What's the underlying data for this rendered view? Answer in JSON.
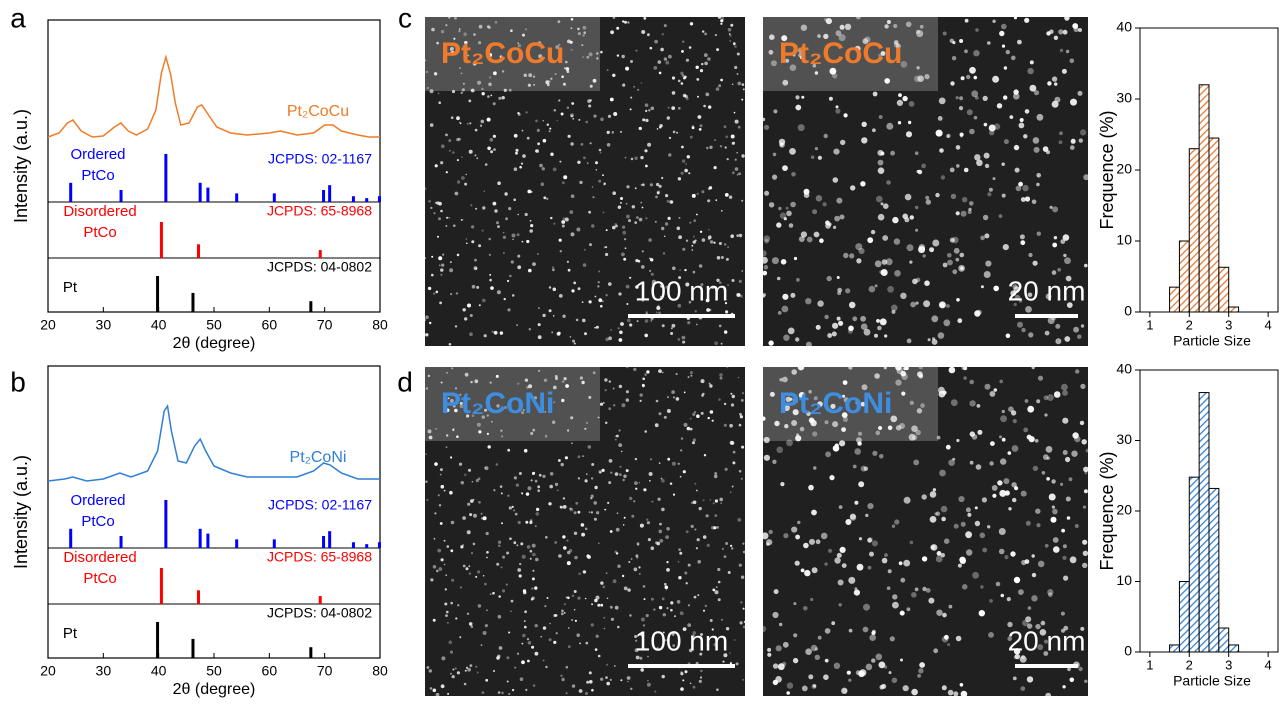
{
  "panel_labels": [
    "a",
    "b",
    "c",
    "d"
  ],
  "chart_data": [
    {
      "type": "line",
      "xlabel": "2θ (degree)",
      "ylabel": "Intensity (a.u.)",
      "xlim": [
        20,
        80
      ],
      "xticks": [
        20,
        30,
        40,
        50,
        60,
        70,
        80
      ],
      "x": [
        20,
        22,
        23.5,
        24.5,
        26,
        28,
        30,
        32,
        33.2,
        34.5,
        36,
        38,
        39.5,
        40.5,
        41.3,
        42.2,
        43,
        44,
        45.5,
        47,
        47.8,
        49,
        50.5,
        53,
        56,
        60,
        62,
        65,
        68,
        70,
        71.5,
        73,
        76,
        78,
        80
      ],
      "series": [
        {
          "name": "Pt₂CoCu",
          "color": "#f07c28",
          "values": [
            8,
            12,
            22,
            25,
            14,
            8,
            9,
            18,
            22,
            14,
            10,
            16,
            35,
            72,
            88,
            70,
            42,
            20,
            22,
            38,
            40,
            30,
            18,
            12,
            10,
            12,
            14,
            10,
            12,
            20,
            20,
            14,
            10,
            8,
            8
          ]
        }
      ],
      "references": [
        {
          "name": [
            "Ordered",
            "PtCo"
          ],
          "card": "JCPDS: 02-1167",
          "color": "#0000ff",
          "x": [
            24.1,
            33.2,
            41.3,
            47.5,
            48.9,
            54.1,
            60.9,
            69.8,
            70.9,
            75.2,
            77.6,
            79.9
          ],
          "values": [
            40,
            25,
            100,
            40,
            30,
            18,
            18,
            25,
            35,
            12,
            8,
            12
          ]
        },
        {
          "name": [
            "Disordered",
            "PtCo"
          ],
          "card": "JCPDS: 65-8968",
          "color": "#ff0000",
          "x": [
            40.5,
            47.2,
            69.2
          ],
          "values": [
            100,
            38,
            22
          ]
        },
        {
          "name": [
            "Pt"
          ],
          "card": "JCPDS: 04-0802",
          "color": "#000000",
          "x": [
            39.8,
            46.2,
            67.5
          ],
          "values": [
            100,
            53,
            30
          ]
        }
      ]
    },
    {
      "type": "line",
      "xlabel": "2θ (degree)",
      "ylabel": "Intensity (a.u.)",
      "xlim": [
        20,
        80
      ],
      "xticks": [
        20,
        30,
        40,
        50,
        60,
        70,
        80
      ],
      "x": [
        20,
        23,
        24.5,
        27,
        30,
        33,
        35,
        38,
        39.8,
        41,
        41.6,
        42.3,
        43.5,
        45,
        46.5,
        47.5,
        48.5,
        50,
        53,
        56,
        60,
        65,
        68,
        69.8,
        71,
        73,
        76,
        80
      ],
      "series": [
        {
          "name": "Pt₂CoNi",
          "color": "#2f7fd6",
          "values": [
            10,
            12,
            14,
            10,
            12,
            18,
            14,
            20,
            40,
            80,
            85,
            60,
            30,
            28,
            45,
            52,
            40,
            25,
            18,
            14,
            14,
            14,
            20,
            28,
            26,
            18,
            12,
            12
          ]
        }
      ],
      "references": [
        {
          "name": [
            "Ordered",
            "PtCo"
          ],
          "card": "JCPDS: 02-1167",
          "color": "#0000ff",
          "x": [
            24.1,
            33.2,
            41.3,
            47.5,
            48.9,
            54.1,
            60.9,
            69.8,
            70.9,
            75.2,
            77.6,
            79.9
          ],
          "values": [
            40,
            25,
            100,
            40,
            30,
            18,
            18,
            25,
            35,
            12,
            8,
            12
          ]
        },
        {
          "name": [
            "Disordered",
            "PtCo"
          ],
          "card": "JCPDS: 65-8968",
          "color": "#ff0000",
          "x": [
            40.5,
            47.2,
            69.2
          ],
          "values": [
            100,
            38,
            22
          ]
        },
        {
          "name": [
            "Pt"
          ],
          "card": "JCPDS: 04-0802",
          "color": "#000000",
          "x": [
            39.8,
            46.2,
            67.5
          ],
          "values": [
            100,
            53,
            30
          ]
        }
      ]
    },
    {
      "type": "histogram",
      "xlabel": "Particle Size",
      "ylabel": "Frequence (%)",
      "xlim": [
        0.75,
        4.25
      ],
      "xticks": [
        1,
        2,
        3,
        4
      ],
      "ylim": [
        0,
        40
      ],
      "yticks": [
        0,
        10,
        20,
        30,
        40
      ],
      "bins": [
        1.5,
        1.75,
        2,
        2.25,
        2.5,
        2.75,
        3,
        3.25
      ],
      "values": [
        3.5,
        10,
        23,
        32,
        24.5,
        6.3,
        0.7
      ],
      "color": "#e8772e"
    },
    {
      "type": "histogram",
      "xlabel": "Particle Size",
      "ylabel": "Frequence (%)",
      "xlim": [
        0.75,
        4.25
      ],
      "xticks": [
        1,
        2,
        3,
        4
      ],
      "ylim": [
        0,
        40
      ],
      "yticks": [
        0,
        10,
        20,
        30,
        40
      ],
      "bins": [
        1.5,
        1.75,
        2,
        2.25,
        2.5,
        2.75,
        3,
        3.25
      ],
      "values": [
        1,
        10,
        24.8,
        36.8,
        23.2,
        3.4,
        1.0
      ],
      "color": "#2f7fd6"
    }
  ],
  "images": [
    {
      "label": "Pt₂CoCu",
      "color": "#f07a2c",
      "scale_bar": "100 nm"
    },
    {
      "label": "Pt₂CoCu",
      "color": "#f07a2c",
      "scale_bar": "20 nm"
    },
    {
      "label": "Pt₂CoNi",
      "color": "#3d8ee0",
      "scale_bar": "100 nm"
    },
    {
      "label": "Pt₂CoNi",
      "color": "#3d8ee0",
      "scale_bar": "20 nm"
    }
  ]
}
